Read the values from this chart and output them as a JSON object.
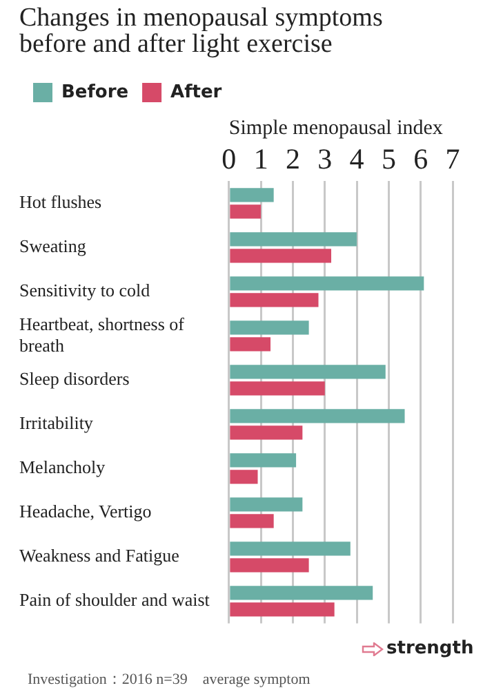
{
  "chart_data": {
    "type": "bar",
    "orientation": "horizontal",
    "title": "Changes in menopausal symptoms before and after light exercise",
    "xlabel": "Simple menopausal index",
    "categories": [
      "Hot flushes",
      "Sweating",
      "Sensitivity to cold",
      "Heartbeat, shortness of breath",
      "Sleep disorders",
      "Irritability",
      "Melancholy",
      "Headache, Vertigo",
      "Weakness and Fatigue",
      "Pain of shoulder and waist"
    ],
    "series": [
      {
        "name": "Before",
        "color": "#6aafa5",
        "values": [
          1.4,
          4.0,
          6.1,
          2.5,
          4.9,
          5.5,
          2.1,
          2.3,
          3.8,
          4.5
        ]
      },
      {
        "name": "After",
        "color": "#d64a68",
        "values": [
          1.0,
          3.2,
          2.8,
          1.3,
          3.0,
          2.3,
          0.9,
          1.4,
          2.5,
          3.3
        ]
      }
    ],
    "xlim": [
      0,
      7
    ],
    "xticks": [
      0,
      1,
      2,
      3,
      4,
      5,
      6,
      7
    ],
    "grid": "x",
    "legend": "top left",
    "annotations": [
      "strength",
      "Investigation：2016 n=39　average symptom"
    ]
  }
}
